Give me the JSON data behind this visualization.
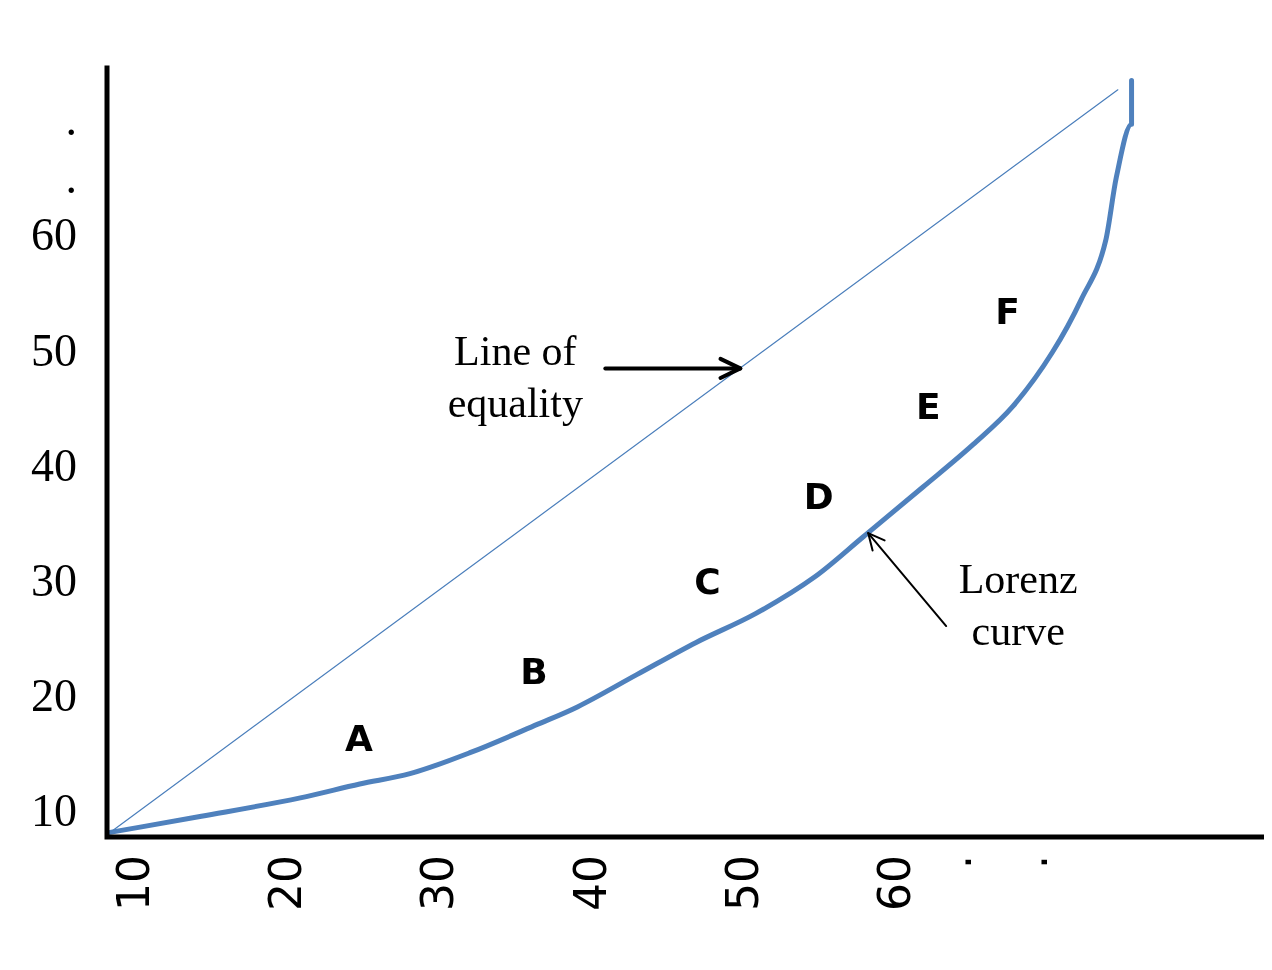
{
  "chart_data": {
    "type": "line",
    "xlim": [
      8,
      84
    ],
    "ylim": [
      8,
      75
    ],
    "xticks": [
      10,
      20,
      30,
      40,
      50,
      60,
      {
        "value": 64,
        "label": "."
      },
      {
        "value": 69,
        "label": "."
      }
    ],
    "yticks": [
      10,
      20,
      30,
      40,
      50,
      60,
      {
        "value": 65,
        "label": "."
      },
      {
        "value": 70,
        "label": "."
      }
    ],
    "grid": false,
    "legend": false,
    "marker": "none",
    "line_style": "solid",
    "series": [
      {
        "color": "#4a7ebb",
        "x": [
          8.2,
          74.4
        ],
        "values": [
          8.4,
          72.9
        ]
      },
      {
        "color": "#4f81bd",
        "x": [
          8.2,
          14.2,
          20.7,
          24.6,
          27.9,
          31.8,
          36.3,
          38.9,
          42.8,
          46.7,
          50.6,
          54.5,
          57.7,
          61.6,
          64.9,
          67.5,
          70.1,
          72.0,
          73.6,
          74.3,
          75.3,
          75.3
        ],
        "values": [
          8.4,
          9.8,
          11.4,
          12.6,
          13.5,
          15.3,
          17.8,
          19.3,
          22.1,
          24.9,
          27.4,
          30.6,
          34.1,
          38.4,
          42.1,
          45.4,
          50.1,
          54.7,
          59.8,
          65.3,
          69.9,
          73.7
        ]
      }
    ],
    "annotations": [
      {
        "text": "Line of\nequality",
        "x": 49.6,
        "y": 48.7
      },
      {
        "text": "Lorenz\ncurve",
        "x": 58.0,
        "y": 34.4
      },
      {
        "text": "A",
        "x": 27.7,
        "y": 13.5
      },
      {
        "text": "B",
        "x": 39.2,
        "y": 19.3
      },
      {
        "text": "C",
        "x": 50.6,
        "y": 27.1
      },
      {
        "text": "D",
        "x": 57.9,
        "y": 34.5
      },
      {
        "text": "E",
        "x": 65.1,
        "y": 42.3
      },
      {
        "text": "F",
        "x": 70.3,
        "y": 50.6
      }
    ]
  }
}
